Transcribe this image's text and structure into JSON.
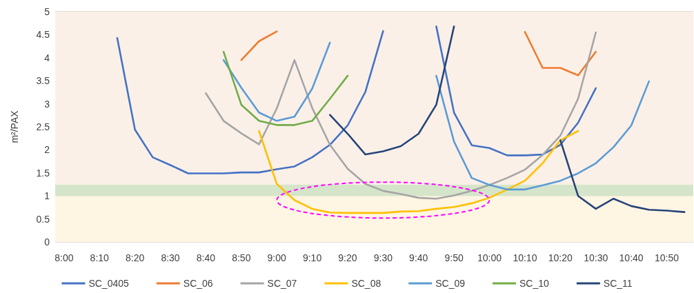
{
  "chart_data": {
    "type": "line",
    "ylabel": "m²/PAX",
    "categories": [
      "8:00",
      null,
      "8:10",
      null,
      "8:20",
      null,
      "8:30",
      null,
      "8:40",
      null,
      "8:50",
      null,
      "9:00",
      null,
      "9:10",
      null,
      "9:20",
      null,
      "9:30",
      null,
      "9:40",
      null,
      "9:50",
      null,
      "10:00",
      null,
      "10:10",
      null,
      "10:20",
      null,
      "10:30",
      null,
      "10:40",
      null,
      "10:50",
      null
    ],
    "series": [
      {
        "name": "SC_0405",
        "color": "#4472c4",
        "values": [
          null,
          null,
          null,
          4.43,
          2.44,
          1.84,
          1.67,
          1.49,
          1.49,
          1.49,
          1.51,
          1.51,
          1.58,
          1.64,
          1.84,
          2.11,
          2.53,
          3.26,
          4.58,
          null,
          null,
          4.68,
          2.81,
          2.1,
          2.04,
          1.88,
          1.88,
          1.9,
          2.11,
          2.59,
          3.34,
          null,
          null,
          null,
          null,
          null
        ]
      },
      {
        "name": "SC_06",
        "color": "#ed7d31",
        "values": [
          null,
          null,
          null,
          null,
          null,
          null,
          null,
          null,
          null,
          null,
          3.95,
          4.36,
          4.57,
          null,
          null,
          null,
          null,
          null,
          null,
          null,
          null,
          null,
          null,
          null,
          null,
          null,
          4.56,
          3.78,
          3.78,
          3.62,
          4.13,
          null,
          null,
          null,
          null,
          null
        ]
      },
      {
        "name": "SC_07",
        "color": "#a5a5a5",
        "values": [
          null,
          null,
          null,
          null,
          null,
          null,
          null,
          null,
          3.23,
          2.63,
          2.36,
          2.12,
          2.9,
          3.95,
          2.91,
          2.11,
          1.59,
          1.26,
          1.11,
          1.04,
          0.96,
          0.94,
          1.01,
          1.11,
          1.24,
          1.39,
          1.57,
          1.89,
          2.31,
          3.11,
          4.55,
          null,
          null,
          null,
          null,
          null
        ]
      },
      {
        "name": "SC_08",
        "color": "#ffc000",
        "values": [
          null,
          null,
          null,
          null,
          null,
          null,
          null,
          null,
          null,
          null,
          null,
          2.41,
          1.26,
          0.91,
          0.72,
          0.64,
          0.63,
          0.63,
          0.63,
          0.66,
          0.67,
          0.72,
          0.76,
          0.84,
          0.96,
          1.14,
          1.33,
          1.71,
          2.21,
          2.41,
          null,
          null,
          null,
          null,
          null,
          null
        ]
      },
      {
        "name": "SC_09",
        "color": "#5b9bd5",
        "values": [
          null,
          null,
          null,
          null,
          null,
          null,
          null,
          null,
          null,
          3.95,
          3.35,
          2.81,
          2.63,
          2.72,
          3.33,
          4.33,
          null,
          null,
          null,
          null,
          null,
          3.61,
          2.18,
          1.39,
          1.24,
          1.14,
          1.14,
          1.23,
          1.33,
          1.49,
          1.71,
          2.06,
          2.53,
          3.49,
          null,
          null
        ]
      },
      {
        "name": "SC_10",
        "color": "#70ad47",
        "values": [
          null,
          null,
          null,
          null,
          null,
          null,
          null,
          null,
          null,
          4.13,
          2.98,
          2.63,
          2.54,
          2.54,
          2.63,
          3.11,
          3.61,
          null,
          null,
          null,
          null,
          null,
          null,
          null,
          null,
          null,
          null,
          null,
          null,
          null,
          null,
          null,
          null,
          null,
          null,
          null
        ]
      },
      {
        "name": "SC_11",
        "color": "#264478",
        "values": [
          null,
          null,
          null,
          null,
          null,
          null,
          null,
          null,
          null,
          null,
          null,
          null,
          null,
          null,
          null,
          2.76,
          2.35,
          1.9,
          1.97,
          2.08,
          2.35,
          2.98,
          4.68,
          null,
          null,
          null,
          null,
          null,
          2.21,
          1.0,
          0.72,
          0.94,
          0.78,
          0.7,
          0.68,
          0.65
        ]
      }
    ],
    "ylim": [
      0,
      5
    ],
    "yticks": [
      0,
      0.5,
      1,
      1.5,
      2,
      2.5,
      3,
      3.5,
      4,
      4.5,
      5
    ],
    "bands": [
      {
        "axis": "y",
        "from": 0,
        "to": 1,
        "color": "#fff5e3"
      },
      {
        "axis": "y",
        "from": 1,
        "to": 1.25,
        "color": "#d5e5c9"
      },
      {
        "axis": "y",
        "from": 1.25,
        "to": 5,
        "color": "#fbf0e8"
      }
    ],
    "grid": "y",
    "legend": "bottom",
    "marker": "none",
    "line_style": "solid"
  }
}
